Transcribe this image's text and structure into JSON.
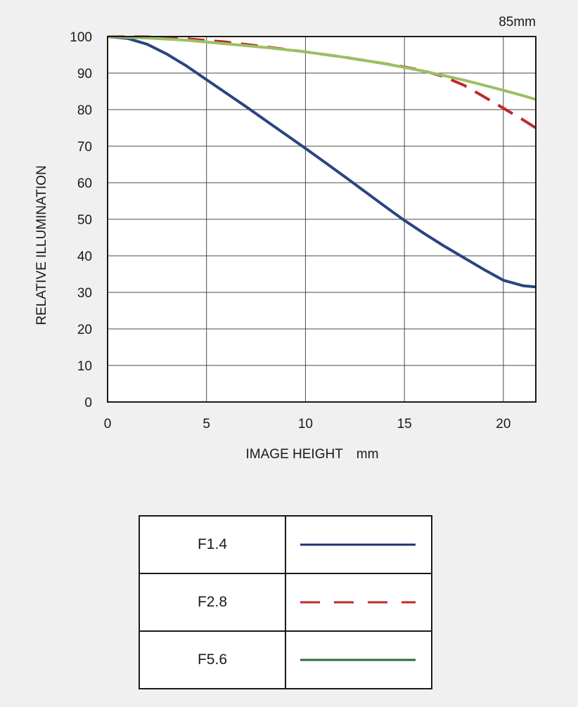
{
  "chart_data": {
    "type": "line",
    "title": "85mm",
    "xlabel": "IMAGE HEIGHT mm",
    "ylabel": "RELATIVE ILLUMINATION",
    "xlim": [
      0,
      21.64
    ],
    "ylim": [
      0,
      100
    ],
    "xticks": [
      0,
      5,
      10,
      15,
      20
    ],
    "yticks": [
      0,
      10,
      20,
      30,
      40,
      50,
      60,
      70,
      80,
      90,
      100
    ],
    "grid": true,
    "legend_placement": "below",
    "series": [
      {
        "name": "F1.4",
        "color": "#2a4580",
        "dash": "solid",
        "x": [
          0,
          1,
          2,
          3,
          4,
          5,
          6,
          7,
          8,
          9,
          10,
          11,
          12,
          13,
          14,
          15,
          16,
          17,
          18,
          19,
          20,
          21,
          21.64
        ],
        "y": [
          100,
          99.5,
          97.9,
          95.2,
          91.9,
          88.2,
          84.5,
          80.8,
          77.0,
          73.2,
          69.4,
          65.5,
          61.6,
          57.6,
          53.6,
          49.7,
          46.1,
          42.7,
          39.5,
          36.3,
          33.3,
          31.8,
          31.5
        ]
      },
      {
        "name": "F2.8",
        "color": "#c0282c",
        "dash": "dashed",
        "x": [
          0,
          2,
          4,
          6,
          8,
          10,
          12,
          14,
          15,
          16,
          17,
          18,
          19,
          20,
          21,
          21.64
        ],
        "y": [
          100,
          99.9,
          99.4,
          98.5,
          97.2,
          95.8,
          94.3,
          92.6,
          91.7,
          90.6,
          89.0,
          86.7,
          83.6,
          80.4,
          77.2,
          75.0
        ]
      },
      {
        "name": "F5.6",
        "color": "#9bc062",
        "legend_color": "#2e6b3a",
        "dash": "solid",
        "x": [
          0,
          2,
          4,
          6,
          8,
          10,
          12,
          14,
          16,
          18,
          20,
          21,
          21.64
        ],
        "y": [
          100,
          99.6,
          99.0,
          98.0,
          97.0,
          95.8,
          94.3,
          92.6,
          90.5,
          88.1,
          85.3,
          83.8,
          82.8
        ]
      }
    ]
  },
  "legend": {
    "rows": [
      {
        "label": "F1.4",
        "color": "#1f3270",
        "dash": "solid"
      },
      {
        "label": "F2.8",
        "color": "#c0282c",
        "dash": "dashed"
      },
      {
        "label": "F5.6",
        "color": "#2e6b3a",
        "dash": "solid"
      }
    ]
  }
}
